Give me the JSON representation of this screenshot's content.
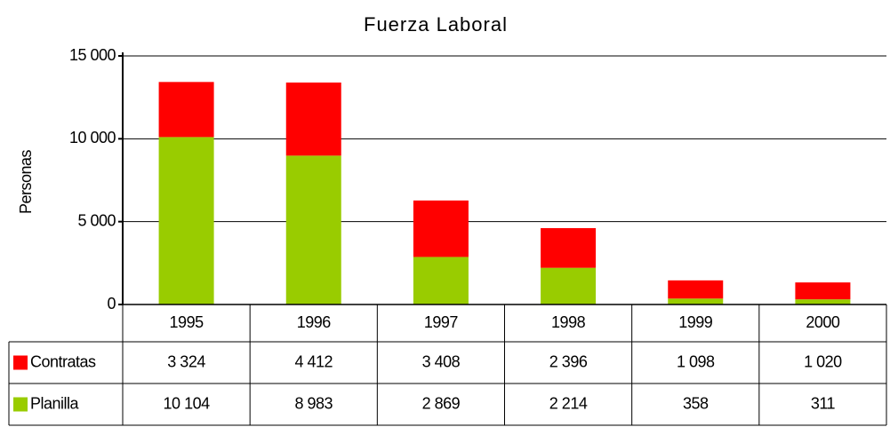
{
  "chart_data": {
    "type": "stacked_bar",
    "title": "Fuerza Laboral",
    "y_label": "Personas",
    "categories": [
      "1995",
      "1996",
      "1997",
      "1998",
      "1999",
      "2000"
    ],
    "series": [
      {
        "name": "Contratas",
        "color": "#ff0000",
        "values": [
          3324,
          4412,
          3408,
          2396,
          1098,
          1020
        ],
        "value_labels": [
          "3 324",
          "4 412",
          "3 408",
          "2 396",
          "1 098",
          "1 020"
        ]
      },
      {
        "name": "Planilla",
        "color": "#99cc00",
        "values": [
          10104,
          8983,
          2869,
          2214,
          358,
          311
        ],
        "value_labels": [
          "10 104",
          "8 983",
          "2 869",
          "2 214",
          "358",
          "311"
        ]
      }
    ],
    "ylim": [
      0,
      15000
    ],
    "yticks": [
      0,
      {
        "value": 5000,
        "label": "5 000"
      },
      {
        "value": 10000,
        "label": "10 000"
      },
      {
        "value": 15000,
        "label": "15 000"
      }
    ],
    "grid": true
  }
}
